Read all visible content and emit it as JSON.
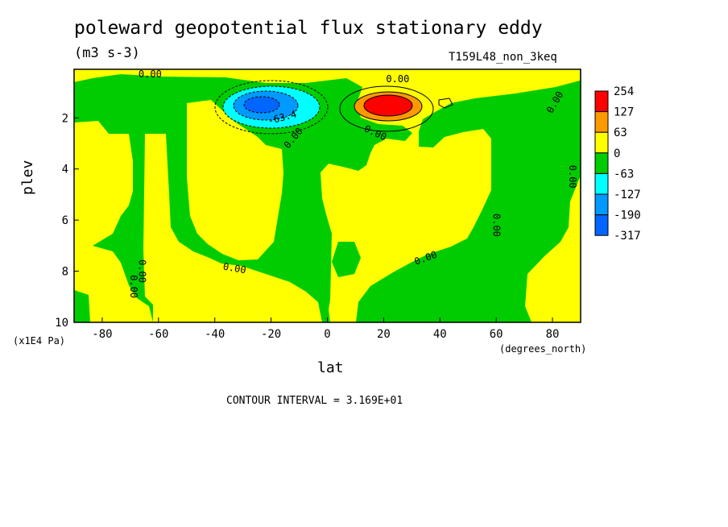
{
  "chart_data": {
    "type": "heatmap",
    "title": "poleward geopotential flux stationary eddy",
    "units": "(m3 s-3)",
    "case_label": "T159L48_non_3keq",
    "xlabel": "lat",
    "xunits": "(degrees_north)",
    "ylabel": "plev",
    "yunits": "(x1E4 Pa)",
    "xlim": [
      -90,
      90
    ],
    "ylim": [
      10,
      0.1
    ],
    "x_ticks": [
      "-80",
      "-60",
      "-40",
      "-20",
      "0",
      "20",
      "40",
      "60",
      "80"
    ],
    "y_ticks": [
      "2",
      "4",
      "6",
      "8",
      "10"
    ],
    "contour_interval_text": "CONTOUR INTERVAL = 3.169E+01",
    "legend": {
      "levels": [
        "254",
        "127",
        "63",
        "0",
        "-63",
        "-127",
        "-190",
        "-317"
      ],
      "colors": [
        "#ff0000",
        "#ff9900",
        "#ffff00",
        "#00cc00",
        "#00ffff",
        "#0099ff",
        "#0066ff"
      ]
    },
    "colors": {
      "negative_fill": "#00cc00",
      "positive_fill": "#ffff00"
    },
    "contour_labels": [
      {
        "text": "0.00",
        "lat": -63,
        "plev": 0.3,
        "angle": 0
      },
      {
        "text": "-63.4",
        "lat": -16,
        "plev": 2.0,
        "angle": -15
      },
      {
        "text": "0.00",
        "lat": 25,
        "plev": 0.5,
        "angle": 0
      },
      {
        "text": "0.00",
        "lat": 17,
        "plev": 2.6,
        "angle": 25
      },
      {
        "text": "0.00",
        "lat": -12,
        "plev": 2.8,
        "angle": -50
      },
      {
        "text": "0.00",
        "lat": 81,
        "plev": 1.4,
        "angle": -60
      },
      {
        "text": "0.00",
        "lat": 87,
        "plev": 4.3,
        "angle": 90
      },
      {
        "text": "0.00",
        "lat": 60,
        "plev": 6.2,
        "angle": 90
      },
      {
        "text": "0.00",
        "lat": 35,
        "plev": 7.5,
        "angle": -20
      },
      {
        "text": "0.00",
        "lat": -33,
        "plev": 7.9,
        "angle": 10
      },
      {
        "text": "0.00",
        "lat": -66,
        "plev": 8.0,
        "angle": 90
      },
      {
        "text": "0.00",
        "lat": -69,
        "plev": 8.6,
        "angle": 90
      }
    ],
    "features": [
      {
        "sign": "negative",
        "lat": -24,
        "plev": 1.5,
        "peak": -317,
        "description": "stationary eddy minimum"
      },
      {
        "sign": "positive",
        "lat": 22,
        "plev": 1.5,
        "peak": 254,
        "description": "stationary eddy maximum"
      }
    ]
  }
}
